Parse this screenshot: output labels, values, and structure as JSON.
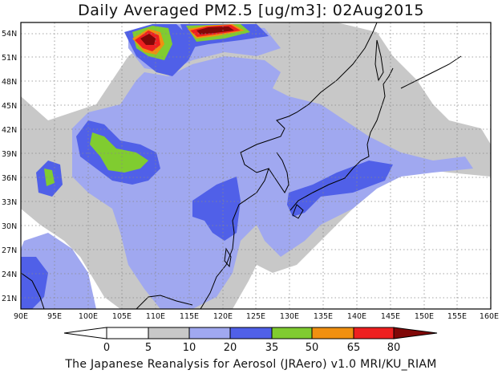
{
  "title": "Daily Averaged PM2.5 [ug/m3]: 02Aug2015",
  "footer": "The Japanese Reanalysis for Aerosol (JRAero) v1.0 MRI/KU_RIAM",
  "map": {
    "lon_labels": [
      "90E",
      "95E",
      "100E",
      "105E",
      "110E",
      "115E",
      "120E",
      "125E",
      "130E",
      "135E",
      "140E",
      "145E",
      "150E",
      "155E",
      "160E"
    ],
    "lat_labels": [
      "54N",
      "51N",
      "48N",
      "45N",
      "42N",
      "39N",
      "36N",
      "33N",
      "30N",
      "27N",
      "24N",
      "21N"
    ],
    "lon_range": [
      90,
      160
    ],
    "lat_range": [
      20,
      55
    ],
    "grid": "dotted"
  },
  "colorbar": {
    "labels": [
      "0",
      "5",
      "10",
      "20",
      "35",
      "50",
      "65",
      "80"
    ],
    "colors": [
      "#ffffff",
      "#c8c8c8",
      "#a0a8f0",
      "#5060e8",
      "#80cc30",
      "#f09010",
      "#ee2020",
      "#800808"
    ]
  }
}
